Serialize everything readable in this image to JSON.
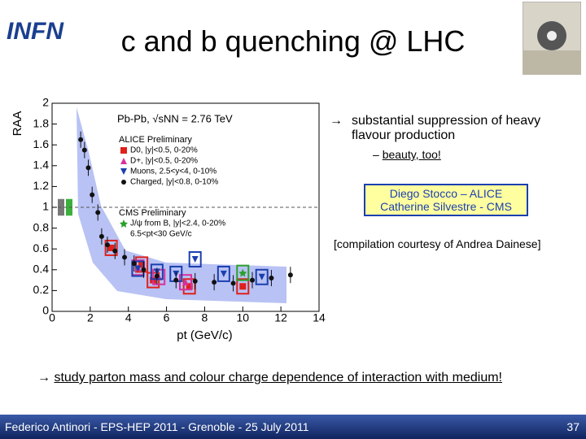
{
  "header": {
    "logo": "INFN",
    "title": "c and b quenching @ LHC"
  },
  "bullets": [
    {
      "text": "substantial suppression of heavy flavour production",
      "sub": "beauty, too!"
    }
  ],
  "credits": [
    "Diego Stocco – ALICE",
    "Catherine Silvestre - CMS"
  ],
  "compilation": "[compilation courtesy of Andrea Dainese]",
  "conclusion": "study parton mass and colour charge dependence of interaction with medium!",
  "footer": {
    "text": "Federico Antinori - EPS-HEP 2011 - Grenoble - 25 July 2011",
    "page": "37"
  },
  "chart_data": {
    "type": "scatter",
    "y_label": "RAA",
    "x_label": "pt (GeV/c)",
    "annotations": [
      "Pb-Pb, √sNN = 2.76 TeV",
      "ALICE Preliminary",
      "CMS Preliminary"
    ],
    "xlim": [
      0,
      14
    ],
    "ylim": [
      0,
      2
    ],
    "xticks": [
      0,
      2,
      4,
      6,
      8,
      10,
      12,
      14
    ],
    "yticks": [
      0,
      0.2,
      0.4,
      0.6,
      0.8,
      1,
      1.2,
      1.4,
      1.6,
      1.8,
      2
    ],
    "series": [
      {
        "name": "D0, |y|<0.5, 0-20%",
        "color": "#e0201b",
        "marker": "square",
        "x": [
          3.1,
          4.7,
          5.3,
          7.2,
          10
        ],
        "values": [
          0.61,
          0.45,
          0.3,
          0.24,
          0.24
        ]
      },
      {
        "name": "D+, |y|<0.5, 0-20%",
        "color": "#d9309a",
        "marker": "triangle",
        "x": [
          4.5,
          5.6,
          7.0
        ],
        "values": [
          0.42,
          0.33,
          0.28
        ]
      },
      {
        "name": "Muons, 2.5<y<4, 0-10%",
        "color": "#1b3fb0",
        "marker": "down-triangle",
        "x": [
          4.5,
          5.5,
          6.5,
          7.5,
          9,
          11
        ],
        "values": [
          0.41,
          0.38,
          0.36,
          0.5,
          0.36,
          0.33
        ]
      },
      {
        "name": "Charged, |y|<0.8, 0-10%",
        "color": "#111111",
        "marker": "circle",
        "x": [
          1.5,
          1.7,
          1.9,
          2.1,
          2.4,
          2.6,
          2.9,
          3.3,
          3.8,
          4.3,
          4.8,
          5.5,
          6.5,
          7.5,
          8.5,
          9.5,
          10.5,
          11.5,
          12.5
        ],
        "values": [
          1.65,
          1.55,
          1.38,
          1.12,
          0.95,
          0.72,
          0.64,
          0.58,
          0.52,
          0.46,
          0.4,
          0.34,
          0.3,
          0.29,
          0.28,
          0.27,
          0.3,
          0.32,
          0.35
        ]
      },
      {
        "name": "J/ψ from B, |y|<2.4, 0-20%",
        "color": "#2aa02a",
        "marker": "star",
        "x": [
          10
        ],
        "values": [
          0.37
        ]
      }
    ],
    "cms_note": "6.5<pt<30 GeV/c"
  }
}
